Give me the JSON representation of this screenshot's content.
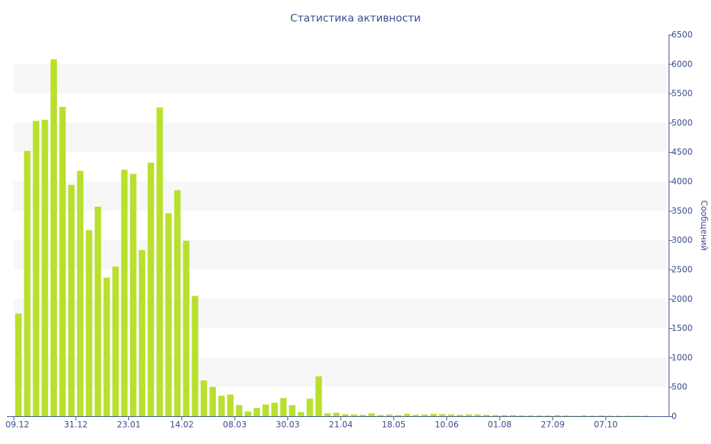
{
  "chart_data": {
    "type": "bar",
    "title": "Статистика активности",
    "ylabel": "Сообщений",
    "xlabel": "",
    "ylim": [
      0,
      6500
    ],
    "y_ticks": [
      0,
      500,
      1000,
      1500,
      2000,
      2500,
      3000,
      3500,
      4000,
      4500,
      5000,
      5500,
      6000,
      6500
    ],
    "x_tick_labels": [
      {
        "label": "09.12",
        "index": 0
      },
      {
        "label": "31.12",
        "index": 6.5
      },
      {
        "label": "23.01",
        "index": 12.5
      },
      {
        "label": "14.02",
        "index": 18.5
      },
      {
        "label": "08.03",
        "index": 24.5
      },
      {
        "label": "30.03",
        "index": 30.5
      },
      {
        "label": "21.04",
        "index": 36.5
      },
      {
        "label": "18.05",
        "index": 42.5
      },
      {
        "label": "10.06",
        "index": 48.5
      },
      {
        "label": "01.08",
        "index": 54.5
      },
      {
        "label": "27.09",
        "index": 60.5
      },
      {
        "label": "07.10",
        "index": 66.5
      }
    ],
    "values": [
      1750,
      4520,
      5030,
      5050,
      6080,
      5270,
      3940,
      4180,
      3170,
      3570,
      2360,
      2550,
      4200,
      4130,
      2830,
      4320,
      5260,
      3460,
      3850,
      2990,
      2050,
      610,
      500,
      350,
      370,
      190,
      80,
      140,
      200,
      230,
      310,
      190,
      70,
      300,
      680,
      50,
      60,
      35,
      30,
      25,
      50,
      20,
      30,
      20,
      40,
      25,
      30,
      40,
      35,
      30,
      25,
      30,
      30,
      25,
      20,
      20,
      20,
      15,
      15,
      15,
      15,
      20,
      15,
      10,
      15,
      10,
      15,
      10,
      10,
      10,
      10,
      10
    ],
    "bar_color": "#b8e02c",
    "band_color": "#f7f7f7",
    "axis_color": "#3b4d8c",
    "text_color": "#3b4d8c",
    "grid": "alternating-bands",
    "y_axis_side": "right"
  }
}
